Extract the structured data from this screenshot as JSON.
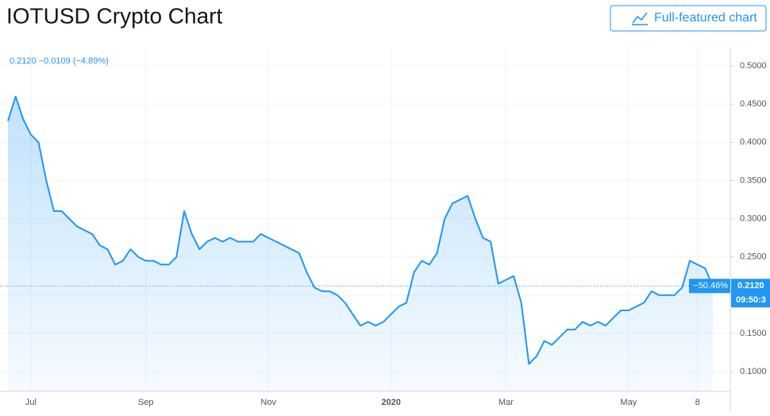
{
  "page_title": "IOTUSD Crypto Chart",
  "button": "Full-featured chart",
  "chart_data": {
    "type": "line",
    "legend_text": "0.2120 −0.0109 (−4.89%)",
    "price_tag": {
      "change": "−50.46%",
      "price": "0.2120",
      "time": "09:50:3"
    },
    "color": "#2196f3",
    "grid": true,
    "categories": [
      null,
      null,
      null,
      "Jul",
      null,
      null,
      null,
      null,
      null,
      null,
      null,
      null,
      null,
      null,
      null,
      null,
      null,
      null,
      "Sep",
      null,
      null,
      null,
      null,
      null,
      null,
      null,
      null,
      null,
      null,
      null,
      null,
      null,
      null,
      null,
      "Nov",
      null,
      null,
      null,
      null,
      null,
      null,
      null,
      null,
      null,
      null,
      null,
      null,
      null,
      null,
      null,
      "2020",
      null,
      null,
      null,
      null,
      null,
      null,
      null,
      null,
      null,
      null,
      null,
      null,
      null,
      null,
      "Mar",
      null,
      null,
      null,
      null,
      null,
      null,
      null,
      null,
      null,
      null,
      null,
      null,
      null,
      null,
      null,
      "May",
      null,
      null,
      null,
      null,
      null,
      null,
      null,
      null,
      "8",
      null,
      null
    ],
    "values": [
      0.428,
      0.46,
      0.43,
      0.41,
      0.4,
      0.35,
      0.31,
      0.31,
      0.3,
      0.29,
      0.285,
      0.28,
      0.265,
      0.26,
      0.24,
      0.245,
      0.26,
      0.25,
      0.245,
      0.245,
      0.24,
      0.24,
      0.25,
      0.31,
      0.28,
      0.26,
      0.27,
      0.275,
      0.27,
      0.275,
      0.27,
      0.27,
      0.27,
      0.28,
      0.275,
      0.27,
      0.265,
      0.26,
      0.255,
      0.23,
      0.21,
      0.205,
      0.205,
      0.2,
      0.19,
      0.175,
      0.16,
      0.165,
      0.16,
      0.165,
      0.175,
      0.185,
      0.19,
      0.23,
      0.245,
      0.24,
      0.255,
      0.3,
      0.32,
      0.325,
      0.33,
      0.3,
      0.275,
      0.27,
      0.215,
      0.22,
      0.225,
      0.19,
      0.11,
      0.12,
      0.14,
      0.135,
      0.145,
      0.155,
      0.155,
      0.165,
      0.16,
      0.165,
      0.16,
      0.17,
      0.18,
      0.18,
      0.185,
      0.19,
      0.205,
      0.2,
      0.2,
      0.2,
      0.21,
      0.245,
      0.24,
      0.235,
      0.212
    ],
    "ylim": [
      0.074,
      0.524
    ],
    "yticks": [
      {
        "value": 0.1,
        "label": "0.1000"
      },
      {
        "value": 0.15,
        "label": "0.1500"
      },
      {
        "value": 0.2,
        "label": "0.2000"
      },
      {
        "value": 0.25,
        "label": "0.2500"
      },
      {
        "value": 0.3,
        "label": "0.3000"
      },
      {
        "value": 0.35,
        "label": "0.3500"
      },
      {
        "value": 0.4,
        "label": "0.4000"
      },
      {
        "value": 0.45,
        "label": "0.4500"
      },
      {
        "value": 0.5,
        "label": "0.5000"
      }
    ]
  }
}
